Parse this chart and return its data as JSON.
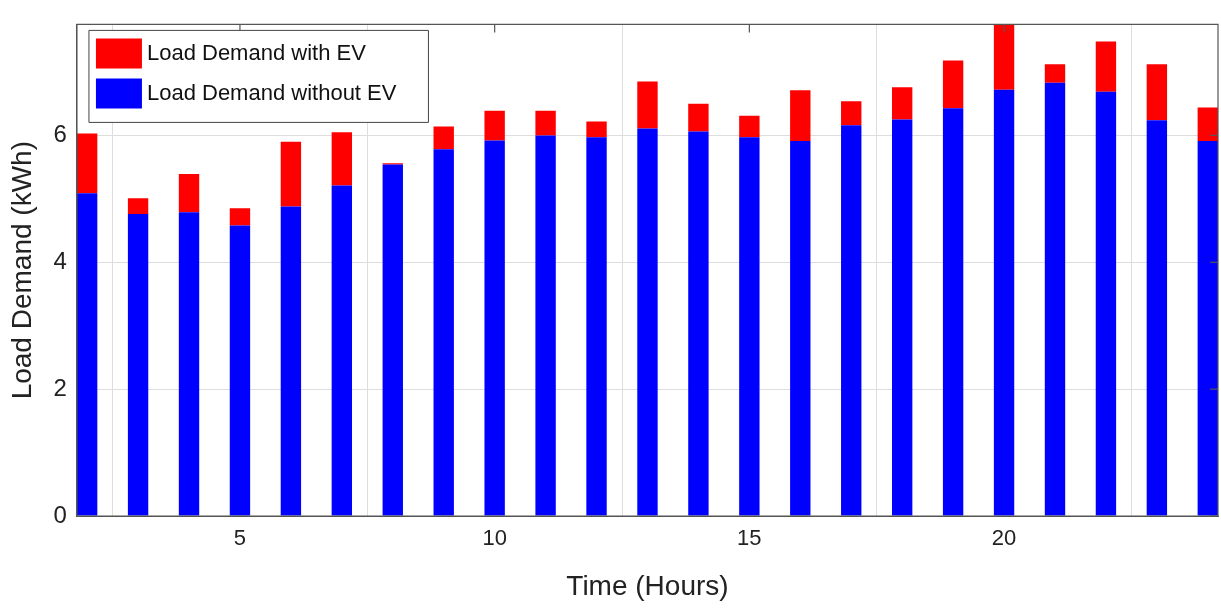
{
  "chart_data": {
    "type": "bar",
    "stacked": true,
    "xlabel": "Time (Hours)",
    "ylabel": "Load Demand (kWh)",
    "x": [
      2,
      3,
      4,
      5,
      6,
      7,
      8,
      9,
      10,
      11,
      12,
      13,
      14,
      15,
      16,
      17,
      18,
      19,
      20,
      21,
      22,
      23,
      24
    ],
    "series": [
      {
        "name": "Load Demand without EV",
        "color": "#0000ff",
        "values": [
          5.09,
          4.76,
          4.79,
          4.58,
          4.88,
          5.21,
          5.54,
          5.78,
          5.92,
          6.0,
          5.97,
          6.11,
          6.06,
          5.97,
          5.91,
          6.16,
          6.25,
          6.43,
          6.72,
          6.83,
          6.69,
          6.24,
          5.91
        ]
      },
      {
        "name": "Load Demand with EV",
        "color": "#ff0000",
        "values": [
          0.94,
          0.25,
          0.6,
          0.27,
          1.02,
          0.84,
          0.02,
          0.36,
          0.47,
          0.39,
          0.25,
          0.74,
          0.44,
          0.34,
          0.8,
          0.38,
          0.51,
          0.75,
          1.03,
          0.29,
          0.79,
          0.88,
          0.53
        ]
      }
    ],
    "xlim": [
      1.8,
      24.2
    ],
    "xticks": [
      5,
      10,
      15,
      20
    ],
    "ylim": [
      0,
      7.75
    ],
    "yticks": [
      0,
      2,
      4,
      6
    ],
    "grid": true,
    "legend": "top left"
  }
}
